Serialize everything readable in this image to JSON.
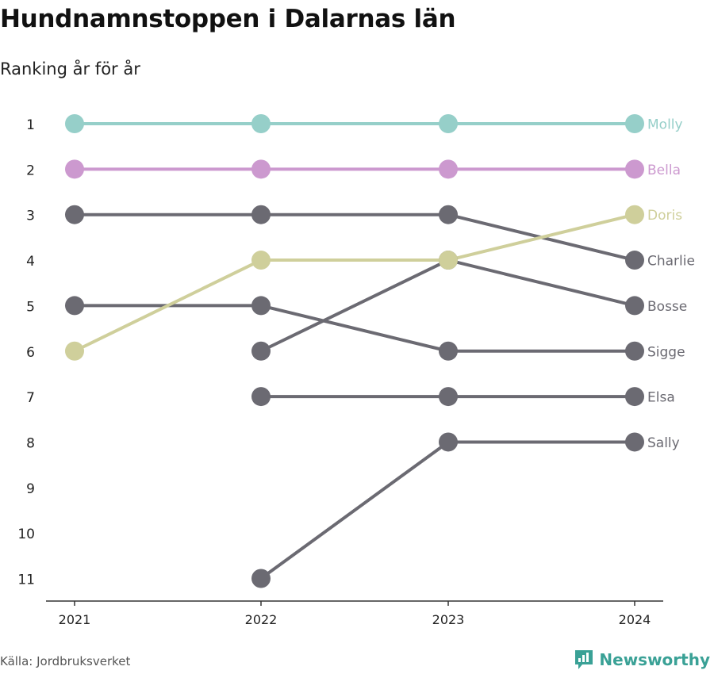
{
  "title": "Hundnamnstoppen i Dalarnas län",
  "subtitle": "Ranking år för år",
  "source": "Källa: Jordbruksverket",
  "brand": {
    "name": "Newsworthy",
    "icon": "newsworthy-logo-icon"
  },
  "colors": {
    "molly": "#96cfc9",
    "bella": "#cc99cf",
    "doris": "#cfcf9b",
    "default": "#6b6a72",
    "axis": "#333333"
  },
  "chart_data": {
    "type": "line",
    "chart_kind": "bump",
    "title": "Hundnamnstoppen i Dalarnas län",
    "subtitle": "Ranking år för år",
    "x": [
      "2021",
      "2022",
      "2023",
      "2024"
    ],
    "y_ticks": [
      "1",
      "2",
      "3",
      "4",
      "5",
      "6",
      "7",
      "8",
      "9",
      "10",
      "11"
    ],
    "ylim": [
      1,
      11
    ],
    "y_inverted": true,
    "grid": false,
    "legend": "direct labels at right end",
    "series": [
      {
        "name": "Molly",
        "color": "molly",
        "ranks": [
          1,
          1,
          1,
          1
        ]
      },
      {
        "name": "Bella",
        "color": "bella",
        "ranks": [
          2,
          2,
          2,
          2
        ]
      },
      {
        "name": "Doris",
        "color": "doris",
        "ranks": [
          6,
          4,
          4,
          3
        ]
      },
      {
        "name": "Charlie",
        "color": "default",
        "ranks": [
          3,
          3,
          3,
          4
        ]
      },
      {
        "name": "Bosse",
        "color": "default",
        "ranks": [
          null,
          6,
          4,
          5
        ]
      },
      {
        "name": "Sigge",
        "color": "default",
        "ranks": [
          5,
          5,
          6,
          6
        ]
      },
      {
        "name": "Elsa",
        "color": "default",
        "ranks": [
          null,
          7,
          7,
          7
        ]
      },
      {
        "name": "Sally",
        "color": "default",
        "ranks": [
          null,
          11,
          8,
          8
        ]
      }
    ]
  }
}
